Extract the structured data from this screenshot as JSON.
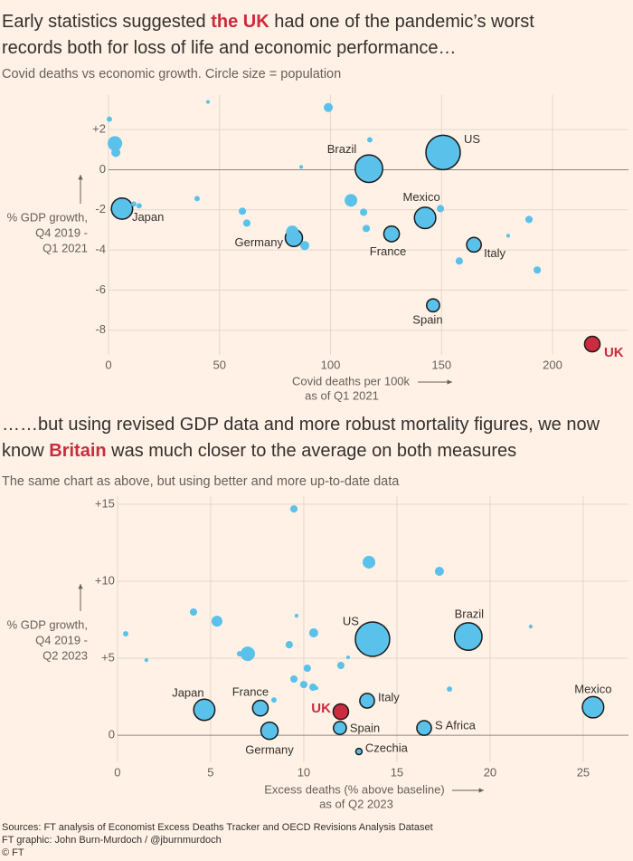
{
  "chart_data": [
    {
      "type": "scatter",
      "title": [
        "Early statistics suggested ",
        "the UK",
        " had one of the pandemic’s worst records both for loss of life and economic performance…"
      ],
      "subtitle": "Covid deaths vs economic growth. Circle size = population",
      "x_label": [
        "Covid deaths per 100k",
        "as of Q1 2021"
      ],
      "y_label": [
        "% GDP growth,",
        "Q4 2019 -",
        "Q1 2021"
      ],
      "xlim": [
        -6.1,
        234.2
      ],
      "ylim": [
        -9.23,
        3.72
      ],
      "xticks": [
        0,
        50,
        100,
        150,
        200
      ],
      "yticks": [
        {
          "value": 2,
          "label": "+2"
        },
        0,
        -2,
        -4,
        -6,
        -8
      ],
      "grid": true,
      "color": "#59c1ea",
      "highlight_color": "#cc2a3d",
      "labels": [
        "US",
        "Brazil",
        "Mexico",
        "Japan",
        "Germany",
        "France",
        "Italy",
        "Spain",
        "UK",
        null,
        null,
        null,
        null,
        null,
        null,
        null,
        null,
        null,
        null,
        null,
        null,
        null,
        null,
        null,
        null,
        null,
        null,
        null,
        null,
        null,
        null
      ],
      "x": [
        150.7,
        117.3,
        142.6,
        6.1,
        83.5,
        127.5,
        164.6,
        146.2,
        217.9,
        82.8,
        0.4,
        2.9,
        3.3,
        44.8,
        99,
        117.7,
        86.8,
        11.4,
        13.8,
        39.9,
        60.3,
        62.3,
        109.2,
        114.9,
        116.1,
        149.5,
        189.4,
        180,
        88.4,
        158,
        193.1
      ],
      "y": [
        0.86,
        0.05,
        -2.4,
        -1.94,
        -3.4,
        -3.2,
        -3.74,
        -6.76,
        -8.69,
        -3.1,
        2.52,
        1.31,
        0.86,
        3.38,
        3.1,
        1.49,
        0.14,
        -1.71,
        -1.8,
        -1.44,
        -2.07,
        -2.66,
        -1.53,
        -2.12,
        -2.93,
        -1.94,
        -2.48,
        -3.29,
        -3.78,
        -4.55,
        -5.0
      ],
      "sizes": [
        331,
        212,
        128,
        126,
        83,
        68,
        60,
        47,
        67,
        45,
        8,
        59,
        23,
        4,
        23,
        8,
        4,
        8,
        8,
        8,
        15,
        15,
        45,
        15,
        15,
        15,
        15,
        4,
        23,
        15,
        15
      ],
      "colors": [
        "#59c1ea",
        "#59c1ea",
        "#59c1ea",
        "#59c1ea",
        "#59c1ea",
        "#59c1ea",
        "#59c1ea",
        "#59c1ea",
        "#cc2a3d",
        "#59c1ea",
        "#59c1ea",
        "#59c1ea",
        "#59c1ea",
        "#59c1ea",
        "#59c1ea",
        "#59c1ea",
        "#59c1ea",
        "#59c1ea",
        "#59c1ea",
        "#59c1ea",
        "#59c1ea",
        "#59c1ea",
        "#59c1ea",
        "#59c1ea",
        "#59c1ea",
        "#59c1ea",
        "#59c1ea",
        "#59c1ea",
        "#59c1ea",
        "#59c1ea",
        "#59c1ea"
      ]
    },
    {
      "type": "scatter",
      "title": [
        "……but using revised GDP data and more robust mortality figures, we now know ",
        "Britain",
        " was much closer to the average on both measures"
      ],
      "subtitle": "The same chart as above, but using better and more up-to-date data",
      "x_label": [
        "Excess deaths (% above baseline)",
        "as of Q2 2023"
      ],
      "y_label": [
        "% GDP growth,",
        "Q4 2019 -",
        "Q2 2023"
      ],
      "xlim": [
        -1.21,
        27.43
      ],
      "ylim": [
        -1.76,
        15.53
      ],
      "xticks": [
        0,
        5,
        10,
        15,
        20,
        25
      ],
      "yticks": [
        0,
        {
          "value": 5,
          "label": "+5"
        },
        {
          "value": 10,
          "label": "+10"
        },
        {
          "value": 15,
          "label": "+15"
        }
      ],
      "grid": true,
      "color": "#59c1ea",
      "highlight_color": "#cc2a3d",
      "labels": [
        "US",
        "Brazil",
        "Mexico",
        "Japan",
        "France",
        "Germany",
        "UK",
        "Italy",
        "Spain",
        "S Africa",
        "Czechia",
        null,
        null,
        null,
        null,
        null,
        null,
        null,
        null,
        null,
        null,
        null,
        null,
        null,
        null,
        null,
        null,
        null,
        null,
        null,
        null,
        null,
        null
      ],
      "x": [
        13.69,
        18.83,
        25.53,
        4.66,
        7.67,
        8.16,
        11.99,
        13.4,
        11.94,
        16.46,
        12.96,
        9.47,
        13.5,
        17.28,
        4.08,
        5.34,
        0.44,
        9.61,
        10.53,
        22.18,
        9.22,
        6.99,
        6.55,
        1.55,
        12.38,
        11.99,
        10.19,
        9.47,
        10.0,
        10.49,
        10.68,
        8.4,
        17.82
      ],
      "y": [
        6.24,
        6.41,
        1.82,
        1.65,
        1.76,
        0.29,
        1.53,
        2.24,
        0.47,
        0.47,
        -1.06,
        14.7,
        11.24,
        10.65,
        8.0,
        7.41,
        6.59,
        7.76,
        6.65,
        7.06,
        5.88,
        5.29,
        5.29,
        4.88,
        5.06,
        4.53,
        4.35,
        3.65,
        3.29,
        3.12,
        3.06,
        2.29,
        3.0
      ],
      "sizes": [
        331,
        212,
        128,
        126,
        68,
        83,
        67,
        60,
        47,
        60,
        11,
        15,
        45,
        23,
        15,
        33,
        8,
        4,
        23,
        4,
        15,
        59,
        8,
        4,
        4,
        15,
        15,
        15,
        15,
        15,
        4,
        8,
        8
      ],
      "colors": [
        "#59c1ea",
        "#59c1ea",
        "#59c1ea",
        "#59c1ea",
        "#59c1ea",
        "#59c1ea",
        "#cc2a3d",
        "#59c1ea",
        "#59c1ea",
        "#59c1ea",
        "#59c1ea",
        "#59c1ea",
        "#59c1ea",
        "#59c1ea",
        "#59c1ea",
        "#59c1ea",
        "#59c1ea",
        "#59c1ea",
        "#59c1ea",
        "#59c1ea",
        "#59c1ea",
        "#59c1ea",
        "#59c1ea",
        "#59c1ea",
        "#59c1ea",
        "#59c1ea",
        "#59c1ea",
        "#59c1ea",
        "#59c1ea",
        "#59c1ea",
        "#59c1ea",
        "#59c1ea",
        "#59c1ea"
      ]
    }
  ],
  "source": [
    "Sources: FT analysis of Economist Excess Deaths Tracker and OECD Revisions Analysis Dataset",
    "FT graphic: John Burn-Murdoch / @jburnmurdoch",
    "© FT"
  ]
}
